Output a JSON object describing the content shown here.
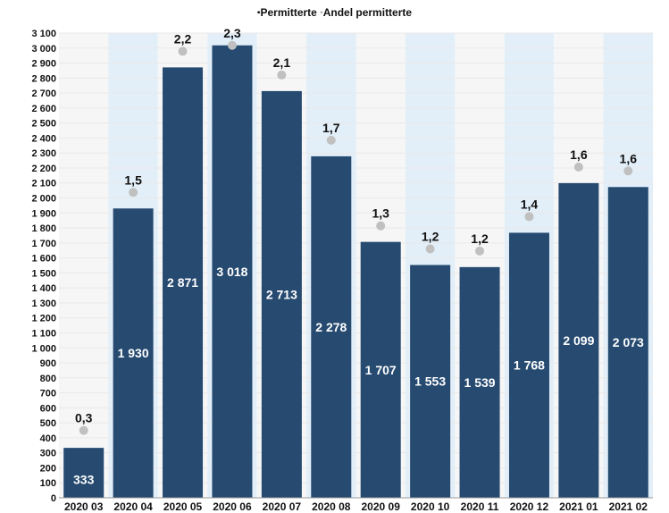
{
  "chart_data": {
    "type": "bar",
    "title": "",
    "legend": {
      "placement": "top-center",
      "entries": [
        "Permitterte",
        "Andel permitterte"
      ]
    },
    "categories": [
      "2020 03",
      "2020 04",
      "2020 05",
      "2020 06",
      "2020 07",
      "2020 08",
      "2020 09",
      "2020 10",
      "2020 11",
      "2020 12",
      "2021 01",
      "2021 02"
    ],
    "series": [
      {
        "name": "Permitterte",
        "type": "bar",
        "values": [
          333,
          1930,
          2871,
          3018,
          2713,
          2278,
          1707,
          1553,
          1539,
          1768,
          2099,
          2073
        ],
        "labels": [
          "333",
          "1 930",
          "2 871",
          "3 018",
          "2 713",
          "2 278",
          "1 707",
          "1 553",
          "1 539",
          "1 768",
          "2 099",
          "2 073"
        ],
        "color": "#264a70"
      },
      {
        "name": "Andel permitterte",
        "type": "scatter",
        "values": [
          0.3,
          1.5,
          2.2,
          2.3,
          2.1,
          1.7,
          1.3,
          1.2,
          1.2,
          1.4,
          1.6,
          1.6
        ],
        "labels": [
          "0,3",
          "1,5",
          "2,2",
          "2,3",
          "2,1",
          "1,7",
          "1,3",
          "1,2",
          "1,2",
          "1,4",
          "1,6",
          "1,6"
        ],
        "color": "#c0c0c0"
      }
    ],
    "y_axis": {
      "min": 0,
      "max": 3100,
      "step": 100,
      "tick_labels": [
        "0",
        "100",
        "200",
        "300",
        "400",
        "500",
        "600",
        "700",
        "800",
        "900",
        "1 000",
        "1 100",
        "1 200",
        "1 300",
        "1 400",
        "1 500",
        "1 600",
        "1 700",
        "1 800",
        "1 900",
        "2 000",
        "2 100",
        "2 200",
        "2 300",
        "2 400",
        "2 500",
        "2 600",
        "2 700",
        "2 800",
        "2 900",
        "3 000",
        "3 100"
      ]
    },
    "secondary_axis_hidden": true,
    "grid": true,
    "colors": {
      "bar": "#264a70",
      "marker": "#c0c0c0",
      "band_light": "#f6f6f6",
      "band_blue": "#e2eff9"
    }
  }
}
